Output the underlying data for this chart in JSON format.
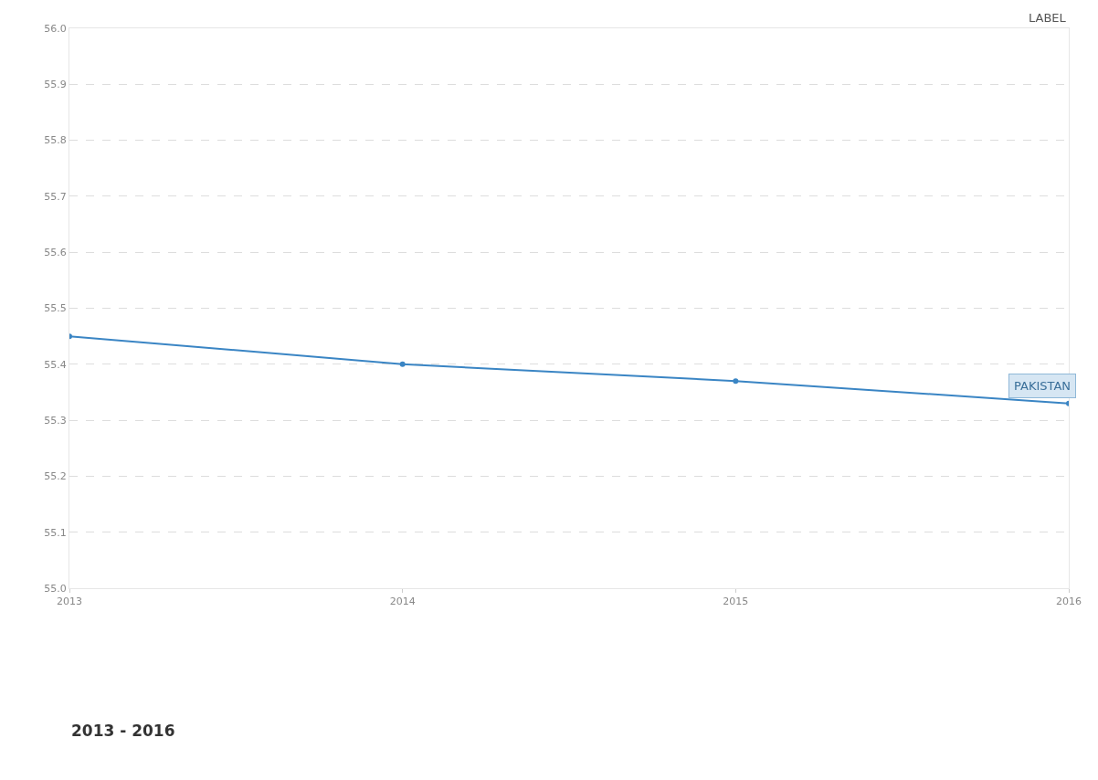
{
  "chart_data": {
    "type": "line",
    "x": [
      2013,
      2014,
      2015,
      2016
    ],
    "series": [
      {
        "name": "PAKISTAN",
        "color": "#3a85c4",
        "values": [
          55.45,
          55.4,
          55.37,
          55.33
        ]
      }
    ],
    "xlim": [
      2013,
      2016
    ],
    "xticks": [
      2013,
      2014,
      2015,
      2016
    ],
    "ylim": [
      55.0,
      56.0
    ],
    "yticks": [
      {
        "value": 55.0,
        "label": "55.0"
      },
      55.1,
      55.2,
      55.3,
      55.4,
      55.5,
      55.6,
      55.7,
      55.8,
      55.9,
      {
        "value": 56.0,
        "label": "56.0"
      }
    ],
    "grid": "y",
    "marker": "circle",
    "line_style": "solid",
    "legend": false,
    "annotations": [
      "LABEL",
      "2013 - 2016"
    ]
  }
}
